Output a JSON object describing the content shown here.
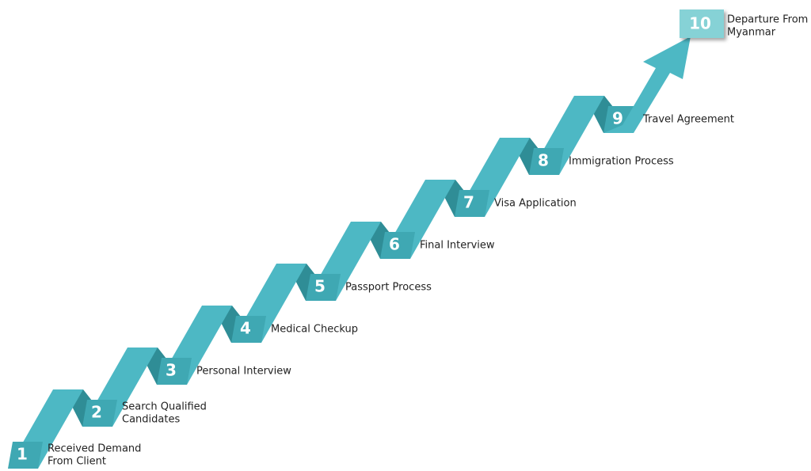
{
  "steps": [
    {
      "number": "1",
      "label": [
        "Received Demand",
        "From Client"
      ]
    },
    {
      "number": "2",
      "label": [
        "Search Qualified",
        "Candidates"
      ]
    },
    {
      "number": "3",
      "label": [
        "Personal Interview"
      ]
    },
    {
      "number": "4",
      "label": [
        "Medical Checkup"
      ]
    },
    {
      "number": "5",
      "label": [
        "Passport Process"
      ]
    },
    {
      "number": "6",
      "label": [
        "Final Interview"
      ]
    },
    {
      "number": "7",
      "label": [
        "Visa Application"
      ]
    },
    {
      "number": "8",
      "label": [
        "Immigration Process"
      ]
    },
    {
      "number": "9",
      "label": [
        "Travel Agreement"
      ]
    },
    {
      "number": "10",
      "label": [
        "Departure From",
        "Myanmar"
      ]
    }
  ]
}
